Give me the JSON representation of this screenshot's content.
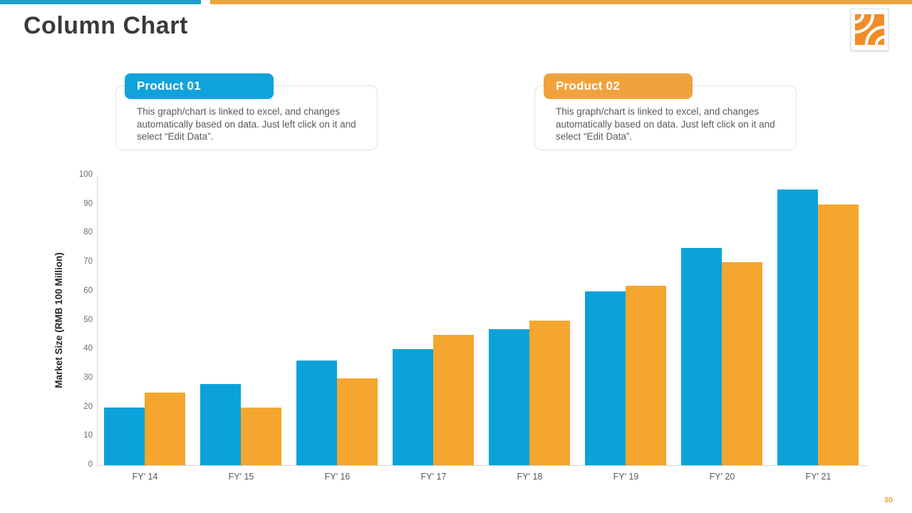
{
  "title": "Column Chart",
  "page_number": "30",
  "logo": {
    "icon": "orange-square-with-white-arcs",
    "color": "#f28c28"
  },
  "callouts": [
    {
      "title": "Product 01",
      "accent": "#0fa3db",
      "body": "This graph/chart is linked to excel, and changes automatically based on data. Just left click on it and select “Edit Data”."
    },
    {
      "title": "Product 02",
      "accent": "#f0a33c",
      "body": "This graph/chart is linked to excel, and changes automatically based on data. Just left click on it and select “Edit Data”."
    }
  ],
  "colors": {
    "top_accent_blue": "#1f9fcb",
    "top_accent_orange": "#eba83e",
    "series_blue": "#0ba2da",
    "series_orange": "#f5a62e",
    "axis_line": "#d6d6d6",
    "tick_text": "#6e6e6e",
    "page_number": "#e8a33d"
  },
  "chart_data": {
    "type": "bar",
    "title": "",
    "categories": [
      "FY' 14",
      "FY' 15",
      "FY' 16",
      "FY' 17",
      "FY' 18",
      "FY' 19",
      "FY' 20",
      "FY' 21"
    ],
    "series": [
      {
        "name": "Product 01",
        "color": "#0ba2da",
        "values": [
          20,
          28,
          36,
          40,
          47,
          60,
          75,
          95
        ]
      },
      {
        "name": "Product 02",
        "color": "#f5a62e",
        "values": [
          25,
          20,
          30,
          45,
          50,
          62,
          70,
          90
        ]
      }
    ],
    "xlabel": "",
    "ylabel": "Market Size (RMB 100 Million)",
    "ylim": [
      0,
      100
    ],
    "ytick_step": 10,
    "grid": false,
    "legend_position": "none"
  }
}
